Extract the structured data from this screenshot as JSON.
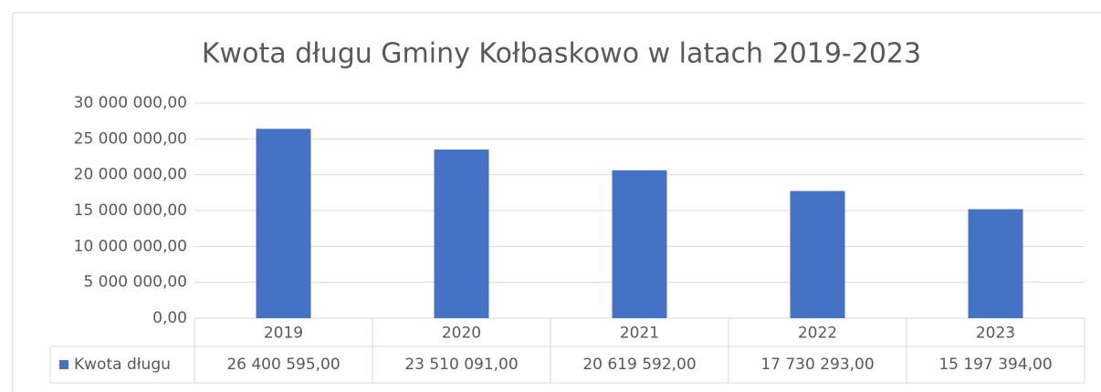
{
  "chart_data": {
    "type": "bar",
    "title": "Kwota długu Gminy Kołbaskowo w latach 2019-2023",
    "categories": [
      "2019",
      "2020",
      "2021",
      "2022",
      "2023"
    ],
    "series": [
      {
        "name": "Kwota długu",
        "color": "#4472c4",
        "values": [
          26400595.0,
          23510091.0,
          20619592.0,
          17730293.0,
          15197394.0
        ],
        "value_labels": [
          "26 400 595,00",
          "23 510 091,00",
          "20 619 592,00",
          "17 730 293,00",
          "15 197 394,00"
        ]
      }
    ],
    "ylim": [
      0,
      30000000
    ],
    "yticks": [
      {
        "value": 0,
        "label": "0,00"
      },
      {
        "value": 5000000,
        "label": "5 000 000,00"
      },
      {
        "value": 10000000,
        "label": "10 000 000,00"
      },
      {
        "value": 15000000,
        "label": "15 000 000,00"
      },
      {
        "value": 20000000,
        "label": "20 000 000,00"
      },
      {
        "value": 25000000,
        "label": "25 000 000,00"
      },
      {
        "value": 30000000,
        "label": "30 000 000,00"
      }
    ],
    "grid": true
  }
}
